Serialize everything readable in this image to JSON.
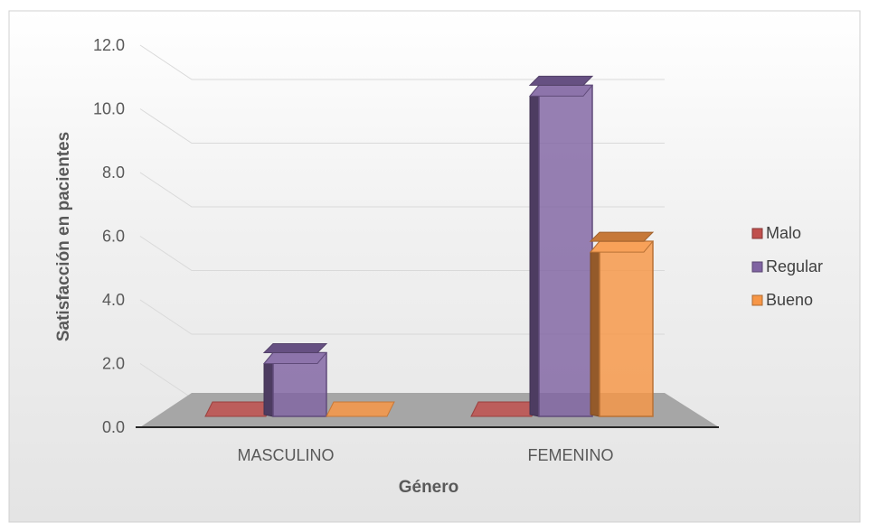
{
  "chart_data": {
    "type": "bar",
    "categories": [
      "MASCULINO",
      "FEMENINO"
    ],
    "series": [
      {
        "name": "Malo",
        "values": [
          0.0,
          0.0
        ],
        "color": "#C0504D"
      },
      {
        "name": "Regular",
        "values": [
          2.0,
          10.4
        ],
        "color": "#8064A2"
      },
      {
        "name": "Bueno",
        "values": [
          0.0,
          5.5
        ],
        "color": "#F79646"
      }
    ],
    "title": "",
    "xlabel": "Género",
    "ylabel": "Satisfacción en pacientes",
    "ylim": [
      0,
      12
    ],
    "yticks": [
      "0.0",
      "2.0",
      "4.0",
      "6.0",
      "8.0",
      "10.0",
      "12.0"
    ],
    "grid": true,
    "legend_position": "right",
    "style": "3d-column",
    "background_color": "#E9E9E9",
    "floor_color": "#A6A6A6"
  }
}
